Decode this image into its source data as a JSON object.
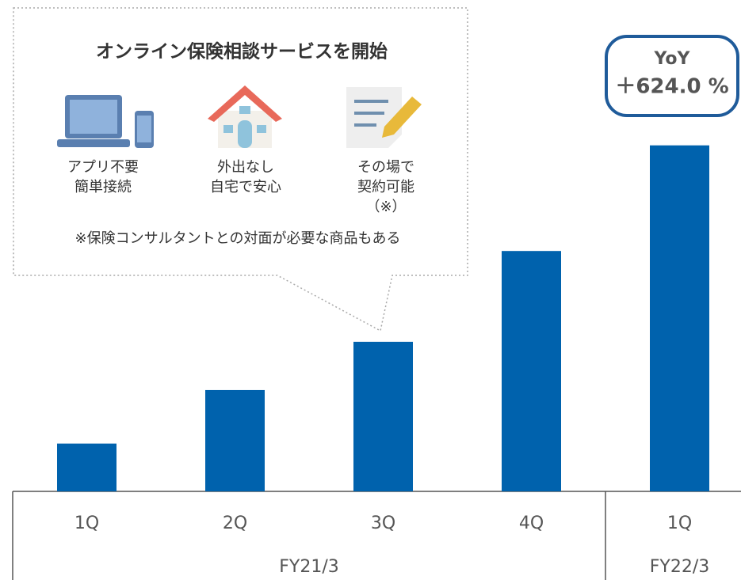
{
  "chart_data": {
    "type": "bar",
    "color": "#0062ad",
    "ylim": [
      0,
      1000
    ],
    "groups": [
      {
        "name": "FY21/3",
        "categories": [
          "1Q",
          "2Q",
          "3Q",
          "4Q"
        ],
        "values": [
          100,
          212,
          313,
          503
        ]
      },
      {
        "name": "FY22/3",
        "categories": [
          "1Q"
        ],
        "values": [
          724
        ]
      }
    ],
    "badge": {
      "title": "YoY",
      "value": "＋624.0 %"
    },
    "callout": {
      "title": "オンライン保険相談サービスを開始",
      "items": [
        {
          "lines": [
            "アプリ不要",
            "簡単接続"
          ]
        },
        {
          "lines": [
            "外出なし",
            "自宅で安心"
          ]
        },
        {
          "lines": [
            "その場で",
            "契約可能",
            "（※）"
          ]
        }
      ],
      "note": "※保険コンサルタントとの対面が必要な商品もある"
    }
  }
}
